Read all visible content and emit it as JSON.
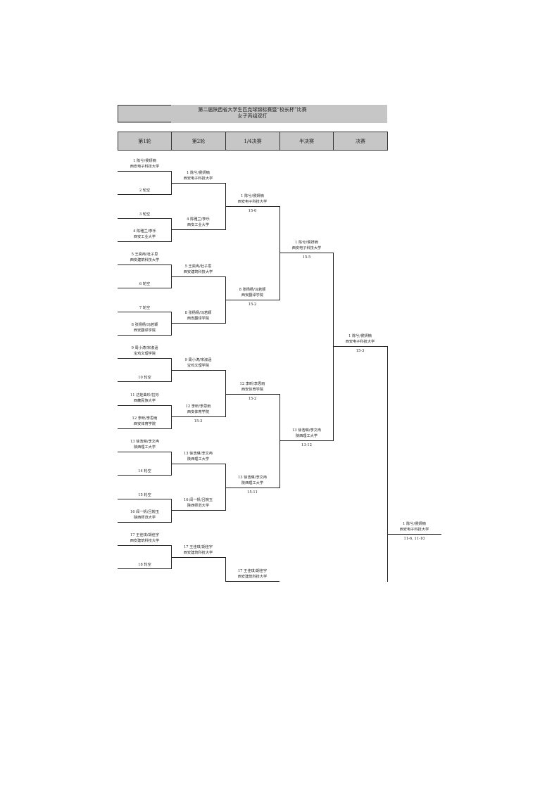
{
  "title": {
    "line1": "第二届陕西省大学生匹克球锦标赛暨“校长杯”比赛",
    "line2": "女子丙组双打"
  },
  "headers": [
    "第1轮",
    "第2轮",
    "1/4决赛",
    "半决赛",
    "决赛"
  ],
  "round1": [
    {
      "name": "1 陈兮/侯妍楠",
      "school": "西安电子科技大学"
    },
    {
      "name": "2 轮空",
      "school": ""
    },
    {
      "name": "3 轮空",
      "school": ""
    },
    {
      "name": "4 陈雅兰/李乐",
      "school": "西安工业大学"
    },
    {
      "name": "5 王奕冉/杜子思",
      "school": "西安建筑科技大学"
    },
    {
      "name": "6 轮空",
      "school": ""
    },
    {
      "name": "7 轮空",
      "school": ""
    },
    {
      "name": "8 张杨杨/冯若颖",
      "school": "西安翻译学院"
    },
    {
      "name": "9 周小涛/宋淑涵",
      "school": "宝鸡文理学院"
    },
    {
      "name": "10 轮空",
      "school": ""
    },
    {
      "name": "11 达娃曲珍/拉珍",
      "school": "西藏民族大学"
    },
    {
      "name": "12 李昕/李思雨",
      "school": "西安体育学院"
    },
    {
      "name": "13 徐浩琳/李文冉",
      "school": "陕西理工大学"
    },
    {
      "name": "14 轮空",
      "school": ""
    },
    {
      "name": "15 轮空",
      "school": ""
    },
    {
      "name": "16 闻一帆/吕婉玉",
      "school": "陕西师范大学"
    },
    {
      "name": "17 王佳琪/胡佳宇",
      "school": "西安建筑科技大学"
    },
    {
      "name": "18 轮空",
      "school": ""
    }
  ],
  "round2": [
    {
      "name": "1 陈兮/侯妍楠",
      "school": "西安电子科技大学",
      "score": ""
    },
    {
      "name": "4 陈雅兰/李乐",
      "school": "西安工业大学",
      "score": ""
    },
    {
      "name": "5 王奕冉/杜子思",
      "school": "西安建筑科技大学",
      "score": ""
    },
    {
      "name": "8 张杨杨/冯若颖",
      "school": "西安翻译学院",
      "score": ""
    },
    {
      "name": "9 周小涛/宋淑涵",
      "school": "宝鸡文理学院",
      "score": ""
    },
    {
      "name": "12 李昕/李思雨",
      "school": "西安体育学院",
      "score": "15-3"
    },
    {
      "name": "13 徐浩琳/李文冉",
      "school": "陕西理工大学",
      "score": ""
    },
    {
      "name": "16 闻一帆/吕婉玉",
      "school": "陕西师范大学",
      "score": ""
    },
    {
      "name": "17 王佳琪/胡佳宇",
      "school": "西安建筑科技大学",
      "score": ""
    }
  ],
  "quarterfinals": [
    {
      "name": "1 陈兮/侯妍楠",
      "school": "西安电子科技大学",
      "score": "15-0"
    },
    {
      "name": "8 张杨杨/冯若颖",
      "school": "西安翻译学院",
      "score": "15-2"
    },
    {
      "name": "12 李昕/李思雨",
      "school": "西安体育学院",
      "score": "15-2"
    },
    {
      "name": "13 徐浩琳/李文冉",
      "school": "陕西理工大学",
      "score": "15-11"
    },
    {
      "name": "17 王佳琪/胡佳宇",
      "school": "西安建筑科技大学",
      "score": ""
    }
  ],
  "semifinals": [
    {
      "name": "1 陈兮/侯妍楠",
      "school": "西安电子科技大学",
      "score": "15-5"
    },
    {
      "name": "13 徐浩琳/李文冉",
      "school": "陕西理工大学",
      "score": "13-12"
    }
  ],
  "final": {
    "name": "1 陈兮/侯妍楠",
    "school": "西安电子科技大学",
    "score": "15-3"
  },
  "champion": {
    "name": "1 陈兮/侯妍楠",
    "school": "西安电子科技大学",
    "score": "11-6, 11-10"
  }
}
